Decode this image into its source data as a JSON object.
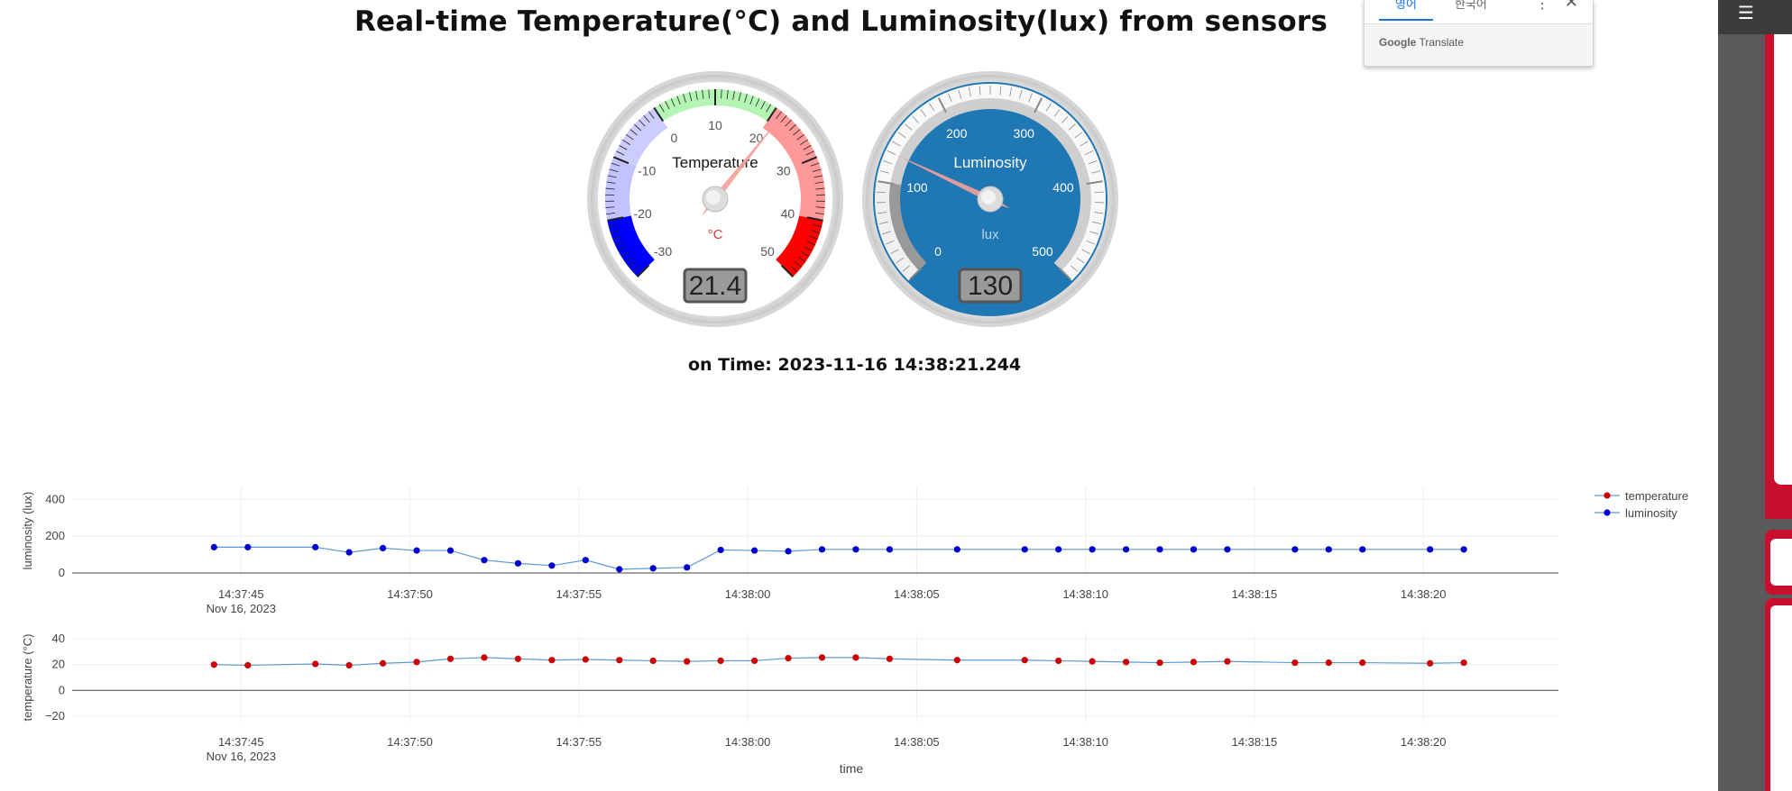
{
  "page": {
    "title": "Real-time Temperature(°C) and Luminosity(lux) from sensors",
    "time_label": "on Time: 2023-11-16 14:38:21.244"
  },
  "translate_widget": {
    "tab1": "영어",
    "tab2": "한국어",
    "menu_icon": "more-vert-icon",
    "close_icon": "close-icon",
    "brand_google": "Google",
    "brand_translate": "Translate"
  },
  "gauges": {
    "temperature": {
      "title": "Temperature",
      "unit": "°C",
      "value": 21.4,
      "display": "21.4",
      "min": -30,
      "max": 50,
      "ticks": [
        "-30",
        "-20",
        "-10",
        "0",
        "10",
        "20",
        "30",
        "40",
        "50"
      ],
      "colors": {
        "cold": "#0000ff",
        "normal": "#2ee62e",
        "hot": "#ff0000"
      }
    },
    "luminosity": {
      "title": "Luminosity",
      "unit": "lux",
      "value": 130,
      "display": "130",
      "min": 0,
      "max": 500,
      "ticks": [
        "0",
        "100",
        "200",
        "300",
        "400",
        "500"
      ],
      "colors": {
        "face": "#1f77b4",
        "band": "#999999"
      }
    }
  },
  "chart_data": [
    {
      "type": "line",
      "title": "",
      "ylabel": "luminosity (lux)",
      "xlabel": "",
      "ylim": [
        -10,
        470
      ],
      "yticks": [
        "0",
        "200",
        "400"
      ],
      "x_ticks": [
        "14:37:45",
        "14:37:50",
        "14:37:55",
        "14:38:00",
        "14:38:05",
        "14:38:10",
        "14:38:15",
        "14:38:20"
      ],
      "x_date": "Nov 16, 2023",
      "series": [
        {
          "name": "luminosity",
          "color": "#0000cd",
          "x_seconds": [
            44.2,
            45.2,
            47.2,
            48.2,
            49.2,
            50.2,
            51.2,
            52.2,
            53.2,
            54.2,
            55.2,
            56.2,
            57.2,
            58.2,
            59.2,
            60.2,
            61.2,
            62.2,
            63.2,
            64.2,
            66.2,
            68.2,
            69.2,
            70.2,
            71.2,
            72.2,
            73.2,
            74.2,
            76.2,
            77.2,
            78.2,
            80.2,
            81.2
          ],
          "values": [
            140,
            140,
            140,
            112,
            135,
            122,
            122,
            70,
            52,
            40,
            70,
            20,
            25,
            30,
            125,
            122,
            118,
            128,
            128,
            128,
            128,
            128,
            128,
            128,
            128,
            128,
            128,
            128,
            128,
            128,
            128,
            128,
            128
          ]
        }
      ],
      "legend": [
        "temperature",
        "luminosity"
      ],
      "legend_position": "top-right"
    },
    {
      "type": "line",
      "title": "",
      "ylabel": "temperature (°C)",
      "xlabel": "time",
      "ylim": [
        -25,
        45
      ],
      "yticks": [
        "−20",
        "0",
        "20",
        "40"
      ],
      "x_ticks": [
        "14:37:45",
        "14:37:50",
        "14:37:55",
        "14:38:00",
        "14:38:05",
        "14:38:10",
        "14:38:15",
        "14:38:20"
      ],
      "x_date": "Nov 16, 2023",
      "series": [
        {
          "name": "temperature",
          "color": "#cc0000",
          "x_seconds": [
            44.2,
            45.2,
            47.2,
            48.2,
            49.2,
            50.2,
            51.2,
            52.2,
            53.2,
            54.2,
            55.2,
            56.2,
            57.2,
            58.2,
            59.2,
            60.2,
            61.2,
            62.2,
            63.2,
            64.2,
            66.2,
            68.2,
            69.2,
            70.2,
            71.2,
            72.2,
            73.2,
            74.2,
            76.2,
            77.2,
            78.2,
            80.2,
            81.2
          ],
          "values": [
            20,
            19.5,
            20.5,
            19.5,
            21,
            22,
            24.5,
            25.5,
            24.5,
            23.5,
            24,
            23.5,
            23,
            22.5,
            23,
            23,
            25,
            25.5,
            25.5,
            24.5,
            23.5,
            23.5,
            23,
            22.5,
            22,
            21.5,
            22,
            22.5,
            21.5,
            21.5,
            21.5,
            21,
            21.5
          ]
        }
      ]
    }
  ]
}
